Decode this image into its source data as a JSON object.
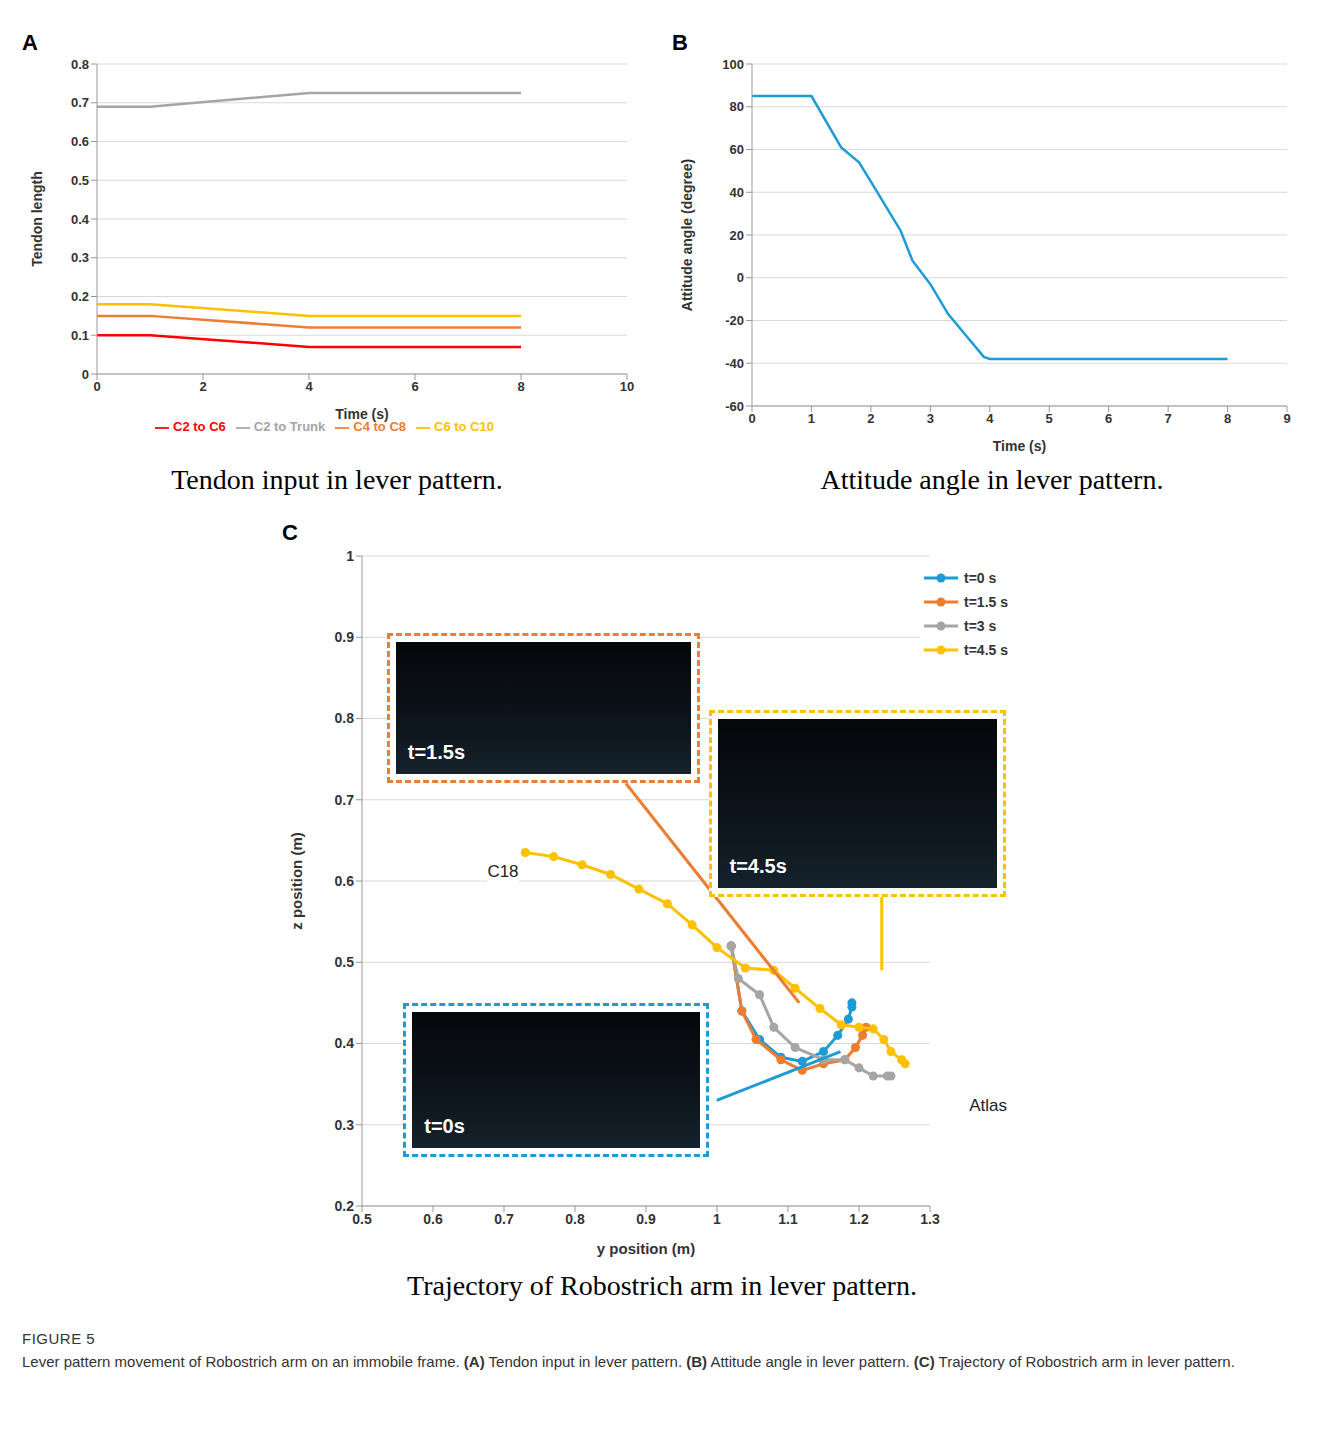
{
  "figure": {
    "label": "FIGURE 5",
    "caption": "Lever pattern movement of Robostrich arm on an immobile frame. (A) Tendon input in lever pattern. (B) Attitude angle in lever pattern. (C) Trajectory of Robostrich arm in lever pattern."
  },
  "chart_data": [
    {
      "panel": "A",
      "type": "line",
      "caption": "Tendon input in lever pattern.",
      "x_label": "Time (s)",
      "y_label": "Tendon length",
      "x": [
        0,
        1,
        4,
        8
      ],
      "series": [
        {
          "name": "C2 to C6",
          "color": "#ff0000",
          "values": [
            0.1,
            0.1,
            0.07,
            0.07
          ]
        },
        {
          "name": "C4 to C8",
          "color": "#ed7d31",
          "values": [
            0.15,
            0.15,
            0.12,
            0.12
          ]
        },
        {
          "name": "C6 to C10",
          "color": "#ffc000",
          "values": [
            0.18,
            0.18,
            0.15,
            0.15
          ]
        },
        {
          "name": "C2 to Trunk",
          "color": "#a5a5a5",
          "values": [
            0.69,
            0.69,
            0.725,
            0.725
          ]
        }
      ],
      "xlim": [
        0,
        10
      ],
      "xticks": [
        0,
        2,
        4,
        6,
        8,
        10
      ],
      "ylim": [
        0,
        0.8
      ],
      "yticks": [
        0,
        0.1,
        0.2,
        0.3,
        0.4,
        0.5,
        0.6,
        0.7,
        0.8
      ],
      "grid": true,
      "legend": "bottom"
    },
    {
      "panel": "B",
      "type": "line",
      "caption": "Attitude angle in lever pattern.",
      "x_label": "Time (s)",
      "y_label": "Attitude angle (degree)",
      "x": [
        0,
        1,
        1.5,
        1.8,
        2,
        2.5,
        2.7,
        3,
        3.3,
        3.6,
        3.9,
        4,
        8
      ],
      "values": [
        85,
        85,
        61,
        54,
        45,
        22,
        8,
        -3,
        -17,
        -27,
        -37,
        -38,
        -38
      ],
      "color": "#1e9bd7",
      "xlim": [
        0,
        9
      ],
      "xticks": [
        0,
        1,
        2,
        3,
        4,
        5,
        6,
        7,
        8,
        9
      ],
      "ylim": [
        -60,
        100
      ],
      "yticks": [
        -60,
        -40,
        -20,
        0,
        20,
        40,
        60,
        80,
        100
      ],
      "grid": true
    },
    {
      "panel": "C",
      "type": "scatter",
      "marker": "circle",
      "line_style": "solid",
      "caption": "Trajectory of Robostrich arm in lever pattern.",
      "x_label": "y position (m)",
      "y_label": "z position (m)",
      "series": [
        {
          "name": "t=0 s",
          "color": "#1e9bd7",
          "x": [
            1.02,
            1.035,
            1.06,
            1.09,
            1.12,
            1.15,
            1.17,
            1.185,
            1.19,
            1.19
          ],
          "y": [
            0.52,
            0.44,
            0.405,
            0.383,
            0.378,
            0.39,
            0.41,
            0.43,
            0.445,
            0.45
          ]
        },
        {
          "name": "t=1.5 s",
          "color": "#ed7d31",
          "x": [
            1.02,
            1.035,
            1.055,
            1.09,
            1.12,
            1.15,
            1.18,
            1.195,
            1.205,
            1.21
          ],
          "y": [
            0.52,
            0.44,
            0.405,
            0.38,
            0.367,
            0.375,
            0.38,
            0.395,
            0.41,
            0.42
          ]
        },
        {
          "name": "t=3 s",
          "color": "#a5a5a5",
          "x": [
            1.02,
            1.03,
            1.06,
            1.08,
            1.11,
            1.15,
            1.18,
            1.2,
            1.22,
            1.24,
            1.245
          ],
          "y": [
            0.52,
            0.48,
            0.46,
            0.42,
            0.395,
            0.38,
            0.38,
            0.37,
            0.36,
            0.36,
            0.36
          ]
        },
        {
          "name": "t=4.5 s",
          "color": "#ffc000",
          "x": [
            0.73,
            0.77,
            0.81,
            0.85,
            0.89,
            0.93,
            0.965,
            1.0,
            1.04,
            1.08,
            1.11,
            1.145,
            1.175,
            1.2,
            1.22,
            1.235,
            1.245,
            1.26,
            1.265
          ],
          "y": [
            0.635,
            0.63,
            0.62,
            0.608,
            0.59,
            0.572,
            0.546,
            0.518,
            0.493,
            0.49,
            0.468,
            0.443,
            0.423,
            0.42,
            0.418,
            0.405,
            0.39,
            0.38,
            0.375
          ]
        }
      ],
      "xlim": [
        0.5,
        1.3
      ],
      "xticks": [
        0.5,
        0.6,
        0.7,
        0.8,
        0.9,
        1,
        1.1,
        1.2,
        1.3
      ],
      "ylim": [
        0.2,
        1
      ],
      "yticks": [
        0.2,
        0.3,
        0.4,
        0.5,
        0.6,
        0.7,
        0.8,
        0.9,
        1
      ],
      "grid": true,
      "legend": "upper right",
      "annotations": [
        "C18",
        "Atlas"
      ],
      "insets": [
        "t=1.5s",
        "t=4.5s",
        "t=0s"
      ]
    }
  ]
}
